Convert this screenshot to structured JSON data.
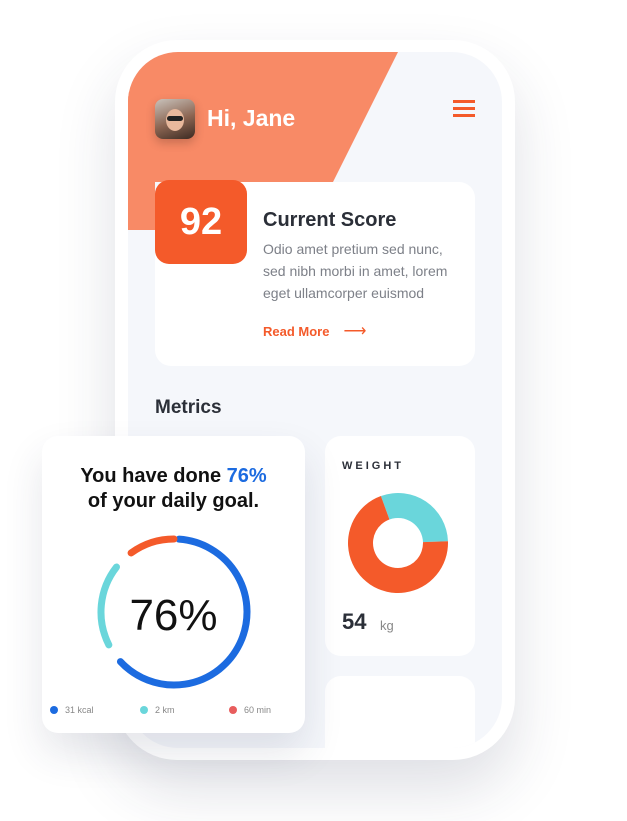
{
  "header": {
    "greeting": "Hi, Jane",
    "header_color": "#f88a66"
  },
  "score_card": {
    "score": "92",
    "title": "Current Score",
    "description": "Odio amet pretium sed nunc, sed nibh morbi in amet, lorem eget ullamcorper euismod",
    "read_more": "Read More",
    "arrow": "⟶"
  },
  "metrics": {
    "title": "Metrics"
  },
  "weight": {
    "label": "WEIGHT",
    "value": "54",
    "unit": "kg",
    "donut": [
      {
        "fraction": 0.3,
        "color": "#6ad6db"
      },
      {
        "fraction": 0.7,
        "color": "#f45a2a"
      }
    ]
  },
  "goal": {
    "prefix": "You have done ",
    "percent": "76%",
    "suffix": "of your daily goal.",
    "center": "76%",
    "segments": [
      {
        "fraction": 0.62,
        "color": "#1c6be0"
      },
      {
        "fraction": 0.18,
        "color": "#6ad6db"
      },
      {
        "fraction": 0.1,
        "color": "#f45a2a"
      }
    ],
    "legend": [
      {
        "label": "31 kcal",
        "color": "#1c6be0"
      },
      {
        "label": "2 km",
        "color": "#6ad6db"
      },
      {
        "label": "60 min",
        "color": "#e85d5d"
      }
    ]
  }
}
